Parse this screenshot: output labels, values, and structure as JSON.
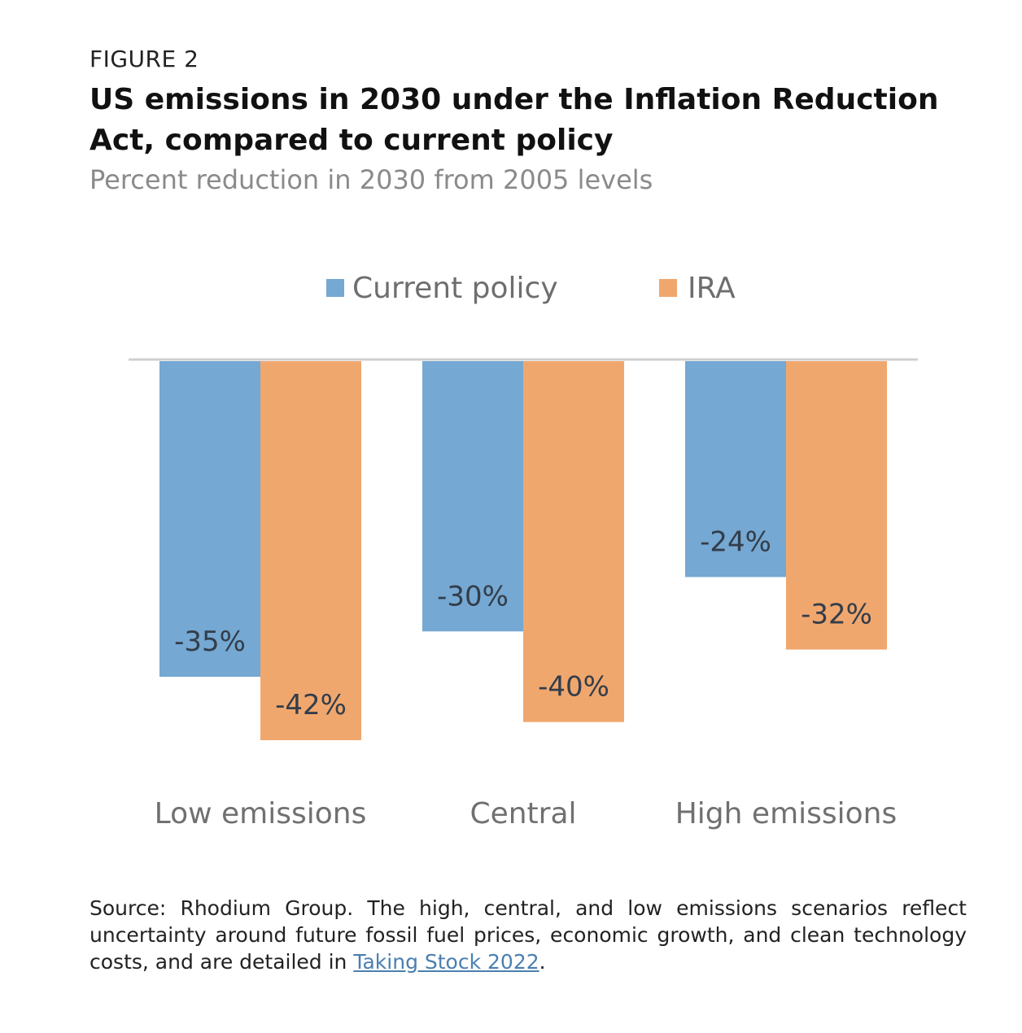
{
  "figure_label": "FIGURE 2",
  "title": "US emissions in 2030 under the Inflation Reduction Act, compared to current policy",
  "subtitle": "Percent reduction in 2030 from 2005 levels",
  "source": {
    "text": "Source: Rhodium Group. The high, central, and low emissions scenarios reflect uncertainty around future fossil fuel prices, economic growth, and clean technology costs, and are detailed in ",
    "link_text": "Taking Stock 2022",
    "end": "."
  },
  "colors": {
    "current_policy": "#75a8d2",
    "ira": "#f0a76e",
    "baseline": "#d0d0d0",
    "category_text": "#707070",
    "legend_text": "#6e6e6e",
    "value_text": "#333d4a"
  },
  "chart_data": {
    "type": "bar",
    "categories": [
      "Low emissions",
      "Central",
      "High emissions"
    ],
    "series": [
      {
        "name": "Current policy",
        "values": [
          -35,
          -30,
          -24
        ],
        "labels": [
          "-35%",
          "-30%",
          "-24%"
        ]
      },
      {
        "name": "IRA",
        "values": [
          -42,
          -40,
          -32
        ],
        "labels": [
          "-42%",
          "-40%",
          "-32%"
        ]
      }
    ],
    "ylim": [
      -42,
      0
    ],
    "legend_position": "top-center",
    "grid": false
  }
}
